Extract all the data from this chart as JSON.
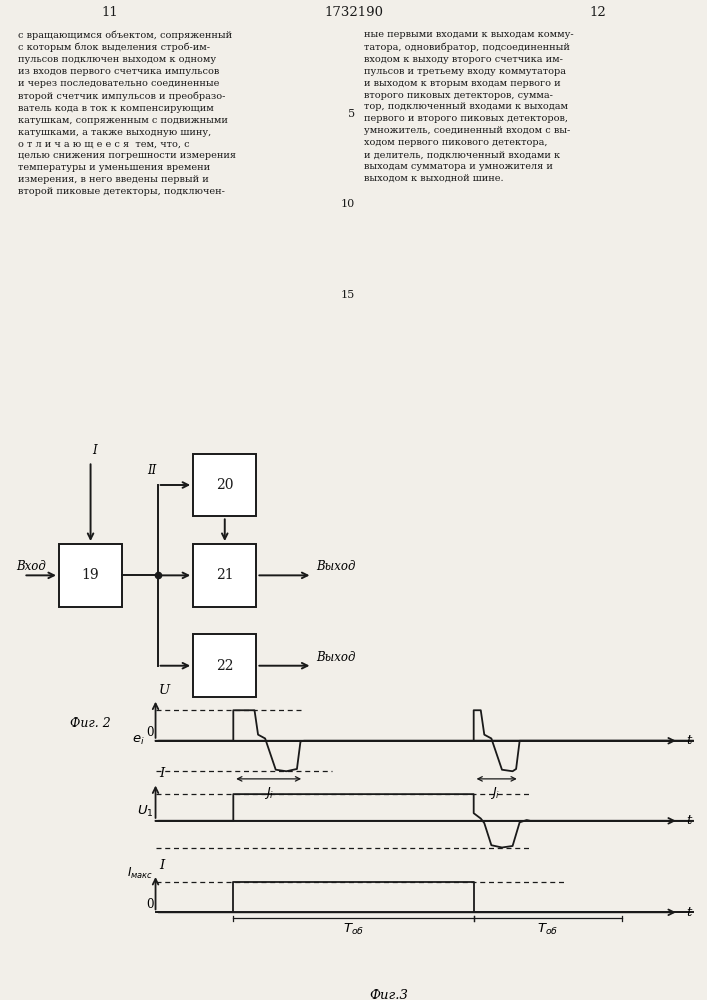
{
  "page_numbers": [
    "11",
    "12"
  ],
  "patent_number": "1732190",
  "text_left": "с вращающимся объектом, сопряженный\nс которым блок выделения строб-им-\nпульсов подключен выходом к одному\nиз входов первого счетчика импульсов\nи через последовательно соединенные\nвторой счетчик импульсов и преобразо-\nватель кода в ток к компенсирующим\nкатушкам, сопряженным с подвижными\nкатушками, а также выходную шину,\nо т л и ч а ю щ е е с я  тем, что, с\nцелью снижения погрешности измерения\nтемпературы и уменьшения времени\nизмерения, в него введены первый и\nвторой пиковые детекторы, подключен-",
  "text_right": "ные первыми входами к выходам комму-\nтатора, одновибратор, подсоединенный\nвходом к выходу второго счетчика им-\nпульсов и третьему входу коммутатора\nи выходом к вторым входам первого и\nвторого пиковых детекторов, сумма-\nтор, подключенный входами к выходам\nпервого и второго пиковых детекторов,\nумножитель, соединенный входом с вы-\nходом первого пикового детектора,\nи делитель, подключенный входами к\nвыходам сумматора и умножителя и\nвыходом к выходной шине.",
  "fig2_label": "Фиг. 2",
  "fig3_label": "Фиг.3",
  "box19_label": "19",
  "box20_label": "20",
  "box21_label": "21",
  "box22_label": "22",
  "entrada_label": "Вход",
  "salida_label": "Выход",
  "salida2_label": "Выход",
  "II_label": "II",
  "I_label": "I",
  "background_color": "#f2efe9",
  "line_color": "#1a1a1a",
  "text_color": "#1a1a1a"
}
